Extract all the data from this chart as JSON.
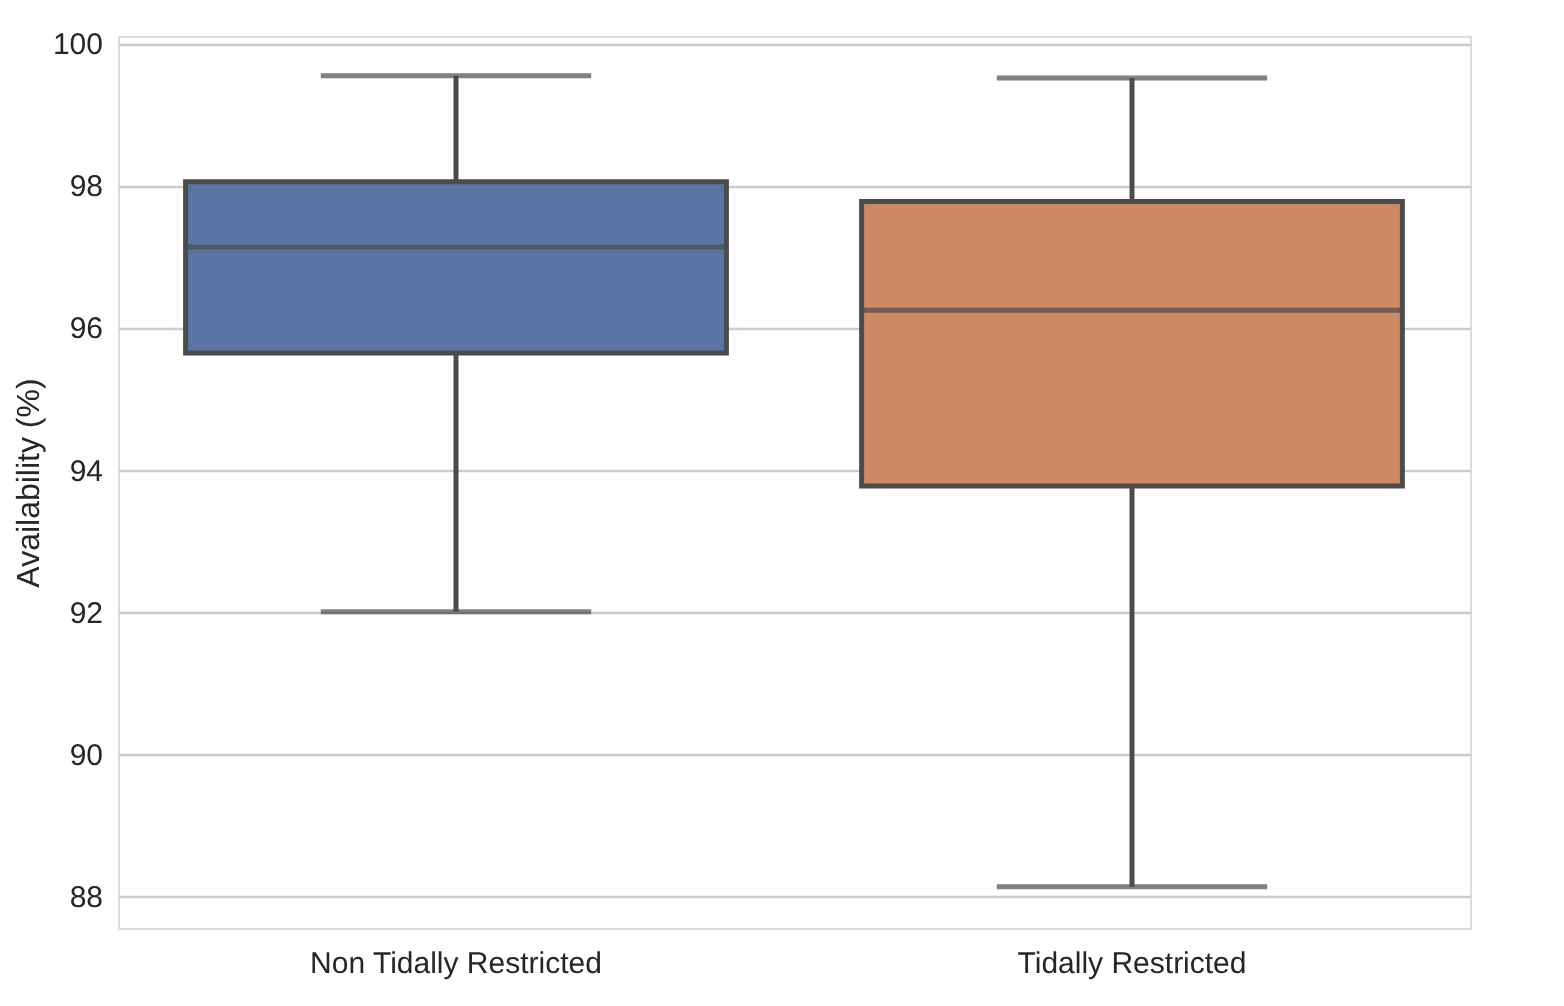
{
  "chart_data": {
    "type": "box",
    "ylabel": "Availability (%)",
    "categories": [
      "Non Tidally Restricted",
      "Tidally Restricted"
    ],
    "colors": [
      "#5975a4",
      "#cc8963"
    ],
    "boxes": [
      {
        "low": 92.0,
        "q1": 95.64,
        "median": 97.13,
        "q3": 98.05,
        "high": 99.54
      },
      {
        "low": 88.13,
        "q1": 93.77,
        "median": 96.24,
        "q3": 97.77,
        "high": 99.51
      }
    ],
    "ylim": [
      87.55,
      100.1
    ],
    "yticks": [
      88,
      90,
      92,
      94,
      96,
      98,
      100
    ],
    "grid": "y"
  }
}
